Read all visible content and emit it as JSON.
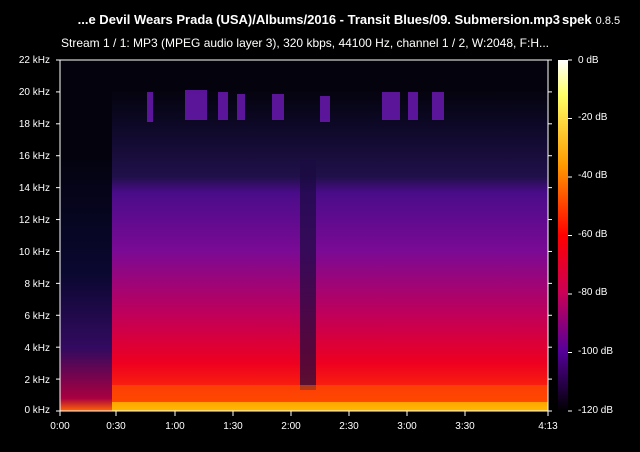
{
  "window": {
    "title": "...e Devil Wears Prada (USA)/Albums/2016 - Transit Blues/09. Submersion.mp3",
    "app_name": "spek",
    "app_version": "0.8.5"
  },
  "stream_info": "Stream 1 / 1: MP3 (MPEG audio layer 3), 320 kbps, 44100 Hz, channel 1 / 2, W:2048, F:H...",
  "frequency_axis": {
    "labels": [
      "22 kHz",
      "20 kHz",
      "18 kHz",
      "16 kHz",
      "14 kHz",
      "12 kHz",
      "10 kHz",
      "8 kHz",
      "6 kHz",
      "4 kHz",
      "2 kHz",
      "0 kHz"
    ]
  },
  "time_axis": {
    "labels": [
      "0:00",
      "0:30",
      "1:00",
      "1:30",
      "2:00",
      "2:30",
      "3:00",
      "3:30",
      "4:13"
    ]
  },
  "db_scale": {
    "labels": [
      "0 dB",
      "-20 dB",
      "-40 dB",
      "-60 dB",
      "-80 dB",
      "-100 dB",
      "-120 dB"
    ],
    "colors": [
      "#ffffff",
      "#ffff66",
      "#ff9900",
      "#ff0000",
      "#cc0055",
      "#550099",
      "#000000"
    ]
  }
}
